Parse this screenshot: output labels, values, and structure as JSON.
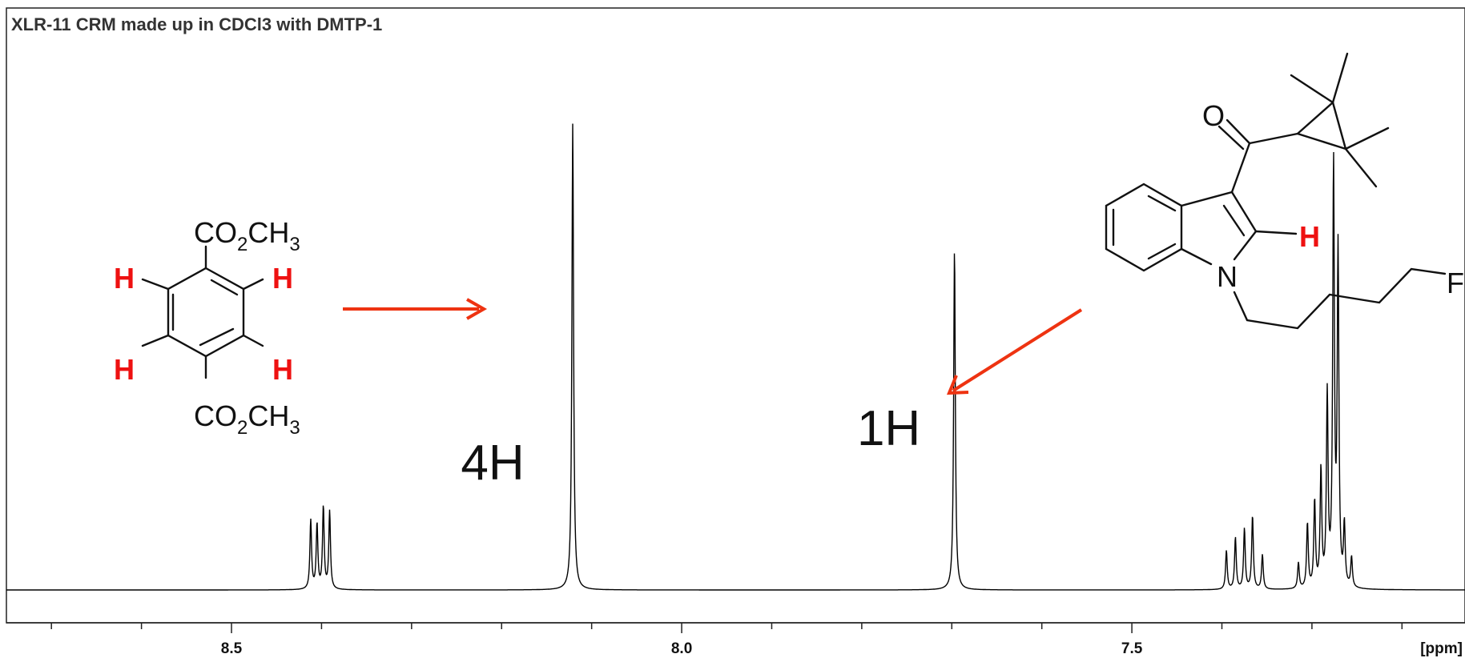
{
  "chart_data": {
    "type": "line",
    "title": "XLR-11 CRM made up in CDCl3 with DMTP-1",
    "xlabel": "",
    "x_unit": "[ppm]",
    "xlim": [
      8.75,
      7.13
    ],
    "x_reversed": true,
    "x_major_ticks": [
      8.5,
      8.0,
      7.5
    ],
    "x_minor_tick_step": 0.1,
    "baseline_relative_intensity": 0.0,
    "peaks": [
      {
        "ppm": 8.121,
        "height": 1.08,
        "label": "4H",
        "assignment": "DMTP aromatic H"
      },
      {
        "ppm": 7.697,
        "height": 0.79,
        "label": "1H",
        "assignment": "XLR-11 indole C2-H"
      },
      {
        "ppm": 8.412,
        "height": 0.16
      },
      {
        "ppm": 8.405,
        "height": 0.15
      },
      {
        "ppm": 8.398,
        "height": 0.19
      },
      {
        "ppm": 8.391,
        "height": 0.18
      },
      {
        "ppm": 7.395,
        "height": 0.09
      },
      {
        "ppm": 7.385,
        "height": 0.12
      },
      {
        "ppm": 7.375,
        "height": 0.14
      },
      {
        "ppm": 7.366,
        "height": 0.17
      },
      {
        "ppm": 7.355,
        "height": 0.08
      },
      {
        "ppm": 7.315,
        "height": 0.06
      },
      {
        "ppm": 7.305,
        "height": 0.15
      },
      {
        "ppm": 7.297,
        "height": 0.2
      },
      {
        "ppm": 7.29,
        "height": 0.27
      },
      {
        "ppm": 7.283,
        "height": 0.44
      },
      {
        "ppm": 7.276,
        "height": 0.97
      },
      {
        "ppm": 7.271,
        "height": 0.77
      },
      {
        "ppm": 7.264,
        "height": 0.14
      },
      {
        "ppm": 7.256,
        "height": 0.07
      }
    ],
    "annotations": [
      {
        "text": "4H",
        "ppm": 8.21,
        "level": 0.3
      },
      {
        "text": "1H",
        "ppm": 7.77,
        "level": 0.38
      }
    ]
  },
  "structures": {
    "dmtp": {
      "top_group": {
        "main": "CO",
        "sub": "2",
        "tail": "CH",
        "sub2": "3"
      },
      "bottom_group": {
        "main": "CO",
        "sub": "2",
        "tail": "CH",
        "sub2": "3"
      },
      "h_labels": [
        "H",
        "H",
        "H",
        "H"
      ]
    },
    "xlr11": {
      "oxygen": "O",
      "nitrogen": "N",
      "fluorine": "F",
      "h_label": "H"
    }
  },
  "colors": {
    "arrow": "#ee3311",
    "highlight_h": "#ee1111",
    "trace": "#000000"
  }
}
